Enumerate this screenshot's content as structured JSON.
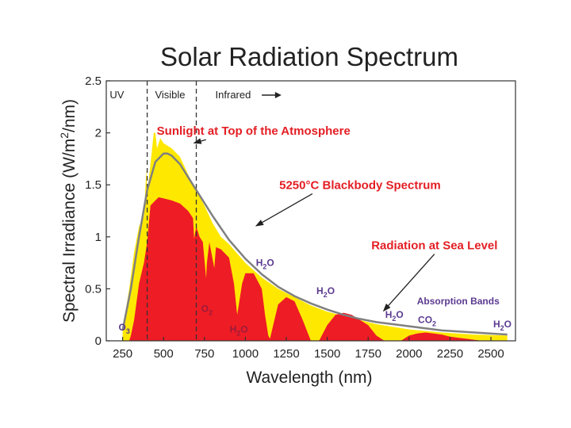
{
  "colors": {
    "yellow": "#FFE800",
    "red": "#EE1C25",
    "gray": "#808080",
    "annotation_red": "#E31E24",
    "molecule_purple": "#5B3A8F",
    "molecule_red": "#9B1B3A",
    "text": "#222222"
  },
  "chart_data": {
    "type": "area",
    "title": "Solar Radiation Spectrum",
    "xlabel": "Wavelength (nm)",
    "ylabel_main": "Spectral Irradiance (W/m",
    "ylabel_sup": "2",
    "ylabel_end": "/nm)",
    "xlim": [
      150,
      2650
    ],
    "ylim": [
      0,
      2.5
    ],
    "xticks": [
      250,
      500,
      750,
      1000,
      1250,
      1500,
      1750,
      2000,
      2250,
      2500
    ],
    "xtick_labels": [
      "250",
      "500",
      "750",
      "1000",
      "1250",
      "1500",
      "1750",
      "2000",
      "2250",
      "2500"
    ],
    "yticks": [
      0,
      0.5,
      1,
      1.5,
      2,
      2.5
    ],
    "ytick_labels": [
      "0",
      "0.5",
      "1",
      "1.5",
      "2",
      "2.5"
    ],
    "regions": [
      {
        "label": "UV",
        "x": 215
      },
      {
        "label": "Visible",
        "x": 540
      },
      {
        "label": "Infrared",
        "x": 925
      }
    ],
    "region_boundaries": [
      400,
      700
    ],
    "series": [
      {
        "name": "Sunlight at Top of the Atmosphere",
        "x": [
          250,
          290,
          320,
          350,
          380,
          395,
          400,
          420,
          440,
          450,
          460,
          480,
          500,
          520,
          550,
          600,
          650,
          700,
          750,
          800,
          850,
          900,
          1000,
          1100,
          1200,
          1300,
          1400,
          1500,
          1600,
          1700,
          1800,
          2000,
          2200,
          2400,
          2600
        ],
        "y": [
          0.1,
          0.5,
          0.85,
          1.1,
          1.2,
          1.65,
          1.4,
          1.7,
          2.0,
          2.0,
          1.85,
          1.95,
          1.9,
          1.88,
          1.85,
          1.77,
          1.6,
          1.45,
          1.3,
          1.13,
          1.0,
          0.93,
          0.75,
          0.61,
          0.5,
          0.42,
          0.34,
          0.28,
          0.24,
          0.2,
          0.16,
          0.11,
          0.08,
          0.06,
          0.05
        ]
      },
      {
        "name": "5250°C Blackbody Spectrum",
        "x": [
          250,
          300,
          350,
          400,
          450,
          500,
          525,
          550,
          600,
          700,
          800,
          900,
          1000,
          1100,
          1200,
          1300,
          1400,
          1500,
          1600,
          1700,
          1800,
          1900,
          2000,
          2200,
          2400,
          2600
        ],
        "y": [
          0.1,
          0.5,
          1.0,
          1.45,
          1.72,
          1.8,
          1.8,
          1.78,
          1.7,
          1.45,
          1.2,
          0.97,
          0.79,
          0.64,
          0.52,
          0.43,
          0.36,
          0.3,
          0.25,
          0.21,
          0.18,
          0.16,
          0.14,
          0.1,
          0.08,
          0.06
        ]
      },
      {
        "name": "Radiation at Sea Level",
        "x": [
          290,
          300,
          320,
          350,
          380,
          400,
          420,
          450,
          470,
          500,
          550,
          600,
          650,
          680,
          687,
          700,
          720,
          740,
          760,
          765,
          780,
          810,
          820,
          850,
          900,
          930,
          950,
          980,
          1000,
          1050,
          1100,
          1120,
          1140,
          1150,
          1200,
          1250,
          1300,
          1350,
          1400,
          1450,
          1500,
          1550,
          1600,
          1650,
          1700,
          1750,
          1800,
          1850,
          1900,
          1950,
          2000,
          2050,
          2100,
          2150,
          2200,
          2250,
          2300,
          2350,
          2400,
          2450,
          2500,
          2550,
          2600
        ],
        "y": [
          0,
          0.05,
          0.2,
          0.55,
          0.75,
          0.95,
          1.3,
          1.35,
          1.38,
          1.37,
          1.35,
          1.32,
          1.25,
          1.18,
          0.98,
          1.1,
          1.0,
          0.95,
          0.6,
          0.75,
          0.95,
          0.7,
          0.9,
          0.88,
          0.8,
          0.55,
          0.25,
          0.55,
          0.65,
          0.65,
          0.5,
          0.25,
          0.05,
          0.02,
          0.35,
          0.42,
          0.38,
          0.2,
          0.0,
          0.0,
          0.15,
          0.25,
          0.27,
          0.25,
          0.2,
          0.15,
          0.05,
          0.0,
          0.0,
          0.0,
          0.05,
          0.07,
          0.08,
          0.07,
          0.06,
          0.04,
          0.03,
          0.02,
          0.01,
          0.0,
          0.0,
          0.0,
          0.0
        ]
      }
    ],
    "annotations": [
      {
        "text": "Sunlight at Top of the Atmosphere",
        "x": 1050,
        "y": 1.98,
        "arrow_to": [
          680,
          1.9
        ]
      },
      {
        "text": "5250°C Blackbody Spectrum",
        "x": 1700,
        "y": 1.46,
        "arrow_to": [
          1060,
          1.1
        ]
      },
      {
        "text": "Radiation at Sea Level",
        "x": 2155,
        "y": 0.88,
        "arrow_to": [
          1840,
          0.28
        ]
      },
      {
        "text": "Absorption Bands",
        "x": 2300,
        "y": 0.35
      }
    ],
    "absorption_labels": [
      {
        "molecule": "O",
        "subscript": "3",
        "x": 260,
        "y": 0.1,
        "color": "purple"
      },
      {
        "molecule": "O",
        "subscript": "2",
        "x": 765,
        "y": 0.28,
        "color": "red"
      },
      {
        "molecule": "H",
        "subscript": "2",
        "suffix": "O",
        "x": 960,
        "y": 0.08,
        "color": "red"
      },
      {
        "molecule": "H",
        "subscript": "2",
        "suffix": "O",
        "x": 1120,
        "y": 0.72,
        "color": "purple"
      },
      {
        "molecule": "H",
        "subscript": "2",
        "suffix": "O",
        "x": 1490,
        "y": 0.45,
        "color": "purple"
      },
      {
        "molecule": "H",
        "subscript": "2",
        "suffix": "O",
        "x": 1910,
        "y": 0.22,
        "color": "purple"
      },
      {
        "molecule": "CO",
        "subscript": "2",
        "x": 2110,
        "y": 0.17,
        "color": "purple"
      },
      {
        "molecule": "H",
        "subscript": "2",
        "suffix": "O",
        "x": 2570,
        "y": 0.13,
        "color": "purple"
      }
    ]
  }
}
